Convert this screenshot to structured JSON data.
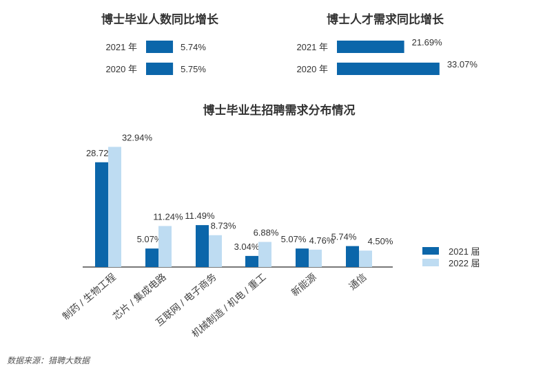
{
  "colors": {
    "dark": "#0b66aa",
    "light": "#bedcf2",
    "axis": "#4a4a4a"
  },
  "source": "数据来源：猎聘大数据",
  "chart_data": [
    {
      "type": "bar",
      "orientation": "horizontal",
      "title": "博士毕业人数同比增长",
      "categories": [
        "2021 年",
        "2020 年"
      ],
      "values": [
        5.74,
        5.75
      ],
      "value_labels": [
        "5.74%",
        "5.75%"
      ]
    },
    {
      "type": "bar",
      "orientation": "horizontal",
      "title": "博士人才需求同比增长",
      "categories": [
        "2021 年",
        "2020 年"
      ],
      "values": [
        21.69,
        33.07
      ],
      "value_labels": [
        "21.69%",
        "33.07%"
      ]
    },
    {
      "type": "bar",
      "title": "博士毕业生招聘需求分布情况",
      "categories": [
        "制药 / 生物工程",
        "芯片 / 集成电路",
        "互联网 / 电子商务",
        "机械制造 / 机电 / 重工",
        "新能源",
        "通信"
      ],
      "series": [
        {
          "name": "2021 届",
          "values": [
            28.72,
            5.07,
            11.49,
            3.04,
            5.07,
            5.74
          ],
          "labels": [
            "28.72%",
            "5.07%",
            "11.49%",
            "3.04%",
            "5.07%",
            "5.74%"
          ]
        },
        {
          "name": "2022 届",
          "values": [
            32.94,
            11.24,
            8.73,
            6.88,
            4.76,
            4.5
          ],
          "labels": [
            "32.94%",
            "11.24%",
            "8.73%",
            "6.88%",
            "4.76%",
            "4.50%"
          ]
        }
      ],
      "legend_position": "right"
    }
  ]
}
